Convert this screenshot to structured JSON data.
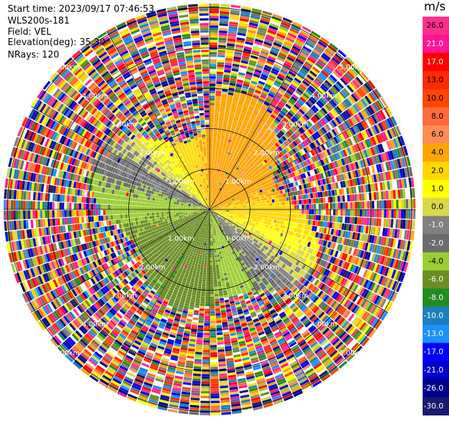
{
  "header": {
    "start_time": "Start time: 2023/09/17 07:46:53",
    "instrument": "WLS200s-181",
    "field": "Field: VEL",
    "elevation": "Elevation(deg): 35.30",
    "nrays": "NRays: 120"
  },
  "chart_data": {
    "type": "heatmap",
    "projection": "polar-ppi",
    "field": "VEL",
    "units": "m/s",
    "range_rings": [
      {
        "label": "1.00km"
      },
      {
        "label": "2.00km"
      },
      {
        "label": "3.00km"
      },
      {
        "label": "4.00km"
      },
      {
        "label": "5.00km"
      }
    ],
    "range_ring_values_km": [
      1,
      2,
      3,
      4,
      5
    ],
    "max_range_km": 5.1,
    "num_rays": 120,
    "spokes_deg": [
      0,
      30,
      60,
      90,
      120,
      150,
      180,
      210,
      240,
      270,
      300,
      330
    ],
    "colorbar": {
      "title": "m/s",
      "ticks": [
        "26.0",
        "21.0",
        "17.0",
        "13.0",
        "10.0",
        "8.0",
        "6.0",
        "4.0",
        "2.0",
        "1.0",
        "0.0",
        "-1.0",
        "-2.0",
        "-4.0",
        "-6.0",
        "-8.0",
        "-10.0",
        "-13.0",
        "-17.0",
        "-21.0",
        "-26.0",
        "-30.0"
      ],
      "colors": [
        "#ff2e8c",
        "#ff1493",
        "#ff0000",
        "#ff2a00",
        "#ff4500",
        "#ff6a3a",
        "#ff8c55",
        "#ffa500",
        "#ffd700",
        "#ffff00",
        "#d8d84a",
        "#808080",
        "#6b6b6b",
        "#9acd32",
        "#6b8e23",
        "#228b22",
        "#1e7fbe",
        "#1e90ff",
        "#0000ff",
        "#0000cd",
        "#00008b",
        "#191970"
      ]
    },
    "ring_label_angles_deg": [
      45,
      135,
      225,
      315
    ]
  }
}
